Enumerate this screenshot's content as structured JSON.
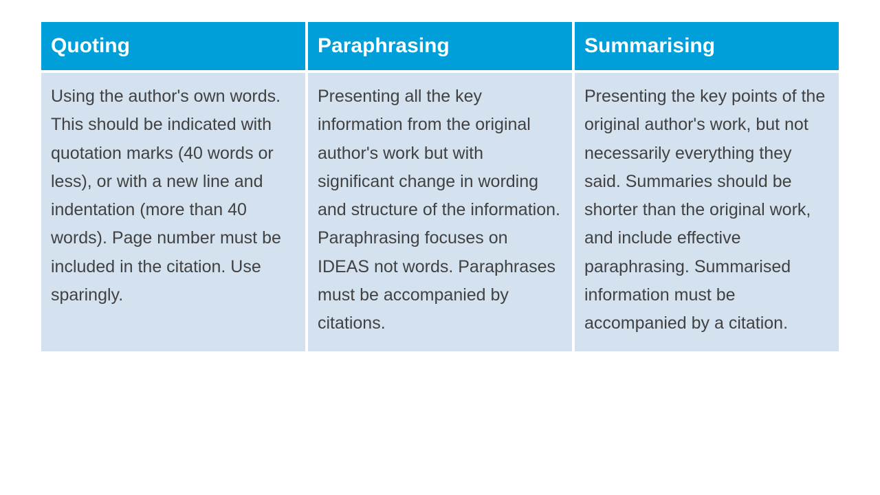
{
  "table": {
    "type": "table",
    "columns": [
      {
        "header": "Quoting",
        "width": "33.3%"
      },
      {
        "header": "Paraphrasing",
        "width": "33.3%"
      },
      {
        "header": "Summarising",
        "width": "33.4%"
      }
    ],
    "rows": [
      [
        "Using the author's own words. This should be indicated with quotation marks (40 words or less), or with a new line and indentation (more than 40 words). Page number must be included in the citation. Use sparingly.",
        "Presenting all the key information from the original author's work but with significant change in wording and structure of the information. Paraphrasing focuses on IDEAS not words. Paraphrases must be accompanied by citations.",
        "Presenting the key points of the original author's work, but not necessarily everything they said. Summaries should be shorter than the original work, and include effective paraphrasing. Summarised information must be accompanied by a citation."
      ]
    ],
    "styling": {
      "header_bg_color": "#009fda",
      "header_text_color": "#ffffff",
      "header_fontsize": 30,
      "header_fontweight": "bold",
      "body_bg_color": "#d4e2f0",
      "body_text_color": "#414141",
      "body_fontsize": 25,
      "body_lineheight": 1.65,
      "page_bg_color": "#ffffff",
      "border_spacing": 4,
      "font_family": "Arial"
    }
  }
}
